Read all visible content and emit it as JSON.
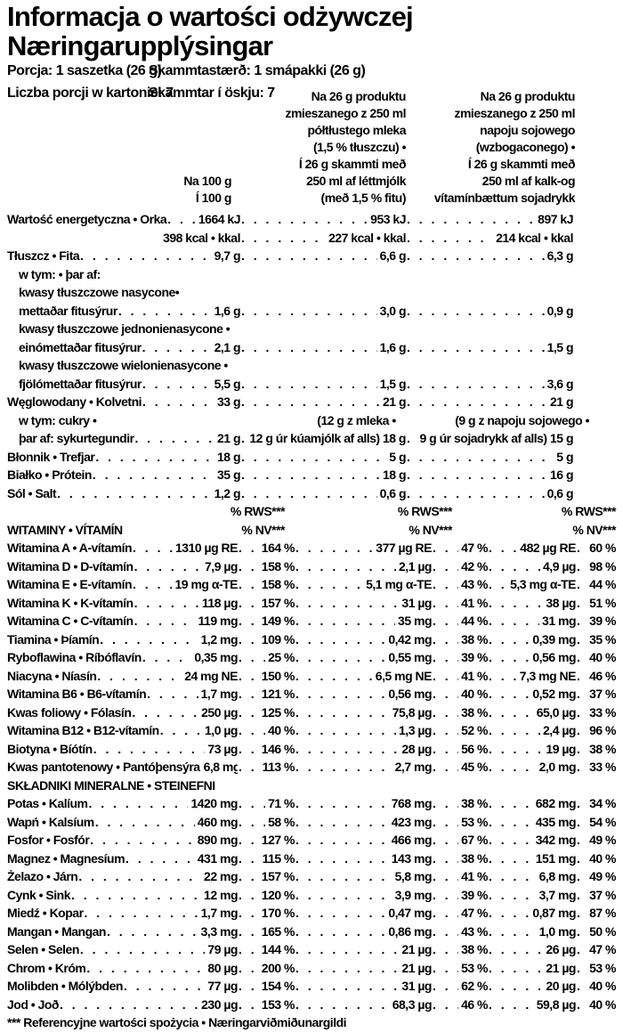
{
  "colors": {
    "text": "#000000",
    "background": "#ffffff"
  },
  "title": [
    "Informacja o wartości odżywczej",
    "Næringarupplýsingar"
  ],
  "meta": {
    "serving_pl": "Porcja: 1 saszetka (26 g)",
    "serving_is": "Skammtastærð: 1 smápakki (26 g)",
    "servings_pl": "Liczba porcji w kartonie: 7",
    "servings_is": "Skammtar í öskju: 7"
  },
  "columns": {
    "per100": [
      "Na 100 g",
      "Í 100 g"
    ],
    "milk": [
      "Na 26 g produktu",
      "zmieszanego z 250 ml",
      "półtłustego mleka",
      "(1,5 % tłuszczu) •",
      "Í 26 g skammti með",
      "250 ml af léttmjólk",
      "(með 1,5 % fitu)"
    ],
    "soy": [
      "Na 26 g produktu",
      "zmieszanego z 250 ml",
      "napoju sojowego",
      "(wzbogaconego) •",
      "Í 26 g skammti með",
      "250 ml af kalk-og",
      "vítamínbættum sojadrykk"
    ]
  },
  "main_rows": [
    {
      "type": "row",
      "label": "Wartość energetyczna • Orka",
      "v1": "1664 kJ",
      "v2": "953 kJ",
      "v3": "897 kJ"
    },
    {
      "type": "row",
      "label": "",
      "v1": "398 kcal • kkal",
      "v2": "227 kcal • kkal",
      "v3": "214 kcal • kkal"
    },
    {
      "type": "row",
      "label": "Tłuszcz • Fita",
      "v1": "9,7 g",
      "v2": "6,6 g",
      "v3": "6,3 g"
    },
    {
      "type": "plain",
      "label": "w tym: • þar af:",
      "indent": 1
    },
    {
      "type": "plain",
      "label": "kwasy tłuszczowe nasycone•",
      "indent": 1
    },
    {
      "type": "row",
      "label": "mettaðar fitusýrur",
      "indent": 1,
      "v1": "1,6 g",
      "v2": "3,0 g",
      "v3": "0,9 g"
    },
    {
      "type": "plain",
      "label": "kwasy tłuszczowe jednonienasycone •",
      "indent": 1
    },
    {
      "type": "row",
      "label": "einómettaðar fitusýrur",
      "indent": 1,
      "v1": "2,1 g",
      "v2": "1,6 g",
      "v3": "1,5 g"
    },
    {
      "type": "plain",
      "label": "kwasy tłuszczowe wielonienasycone •",
      "indent": 1
    },
    {
      "type": "row",
      "label": "fjölómettaðar fitusýrur",
      "indent": 1,
      "v1": "5,5 g",
      "v2": "1,5 g",
      "v3": "3,6 g"
    },
    {
      "type": "row",
      "label": "Węglowodany • Kolvetni",
      "v1": "33 g",
      "v2": "21 g",
      "v3": "21 g"
    },
    {
      "type": "midline",
      "label": "w tym: cukry •",
      "indent": 1,
      "mid2": "(12 g z mleka •",
      "mid3": "(9 g z napoju sojowego •"
    },
    {
      "type": "row",
      "label": "þar af: sykurtegundir",
      "indent": 1,
      "v1": "21 g",
      "v2": "12 g úr kúamjólk af alls) 18 g",
      "v3": "9 g úr sojadrykk af alls) 15 g"
    },
    {
      "type": "row",
      "label": "Błonnik • Trefjar",
      "v1": "18 g",
      "v2": "5 g",
      "v3": "5 g"
    },
    {
      "type": "row",
      "label": "Białko • Prótein",
      "v1": "35 g",
      "v2": "18 g",
      "v3": "16 g"
    },
    {
      "type": "row",
      "label": "Sól • Salt",
      "v1": "1,2 g",
      "v2": "0,6 g",
      "v3": "0,6 g"
    }
  ],
  "rws_header": {
    "rws": "% RWS***",
    "nv": "% NV***"
  },
  "sections": {
    "vitamins": "WITAMINY • VÍTAMÍN",
    "minerals": "SKŁADNIKI MINERALNE • STEINEFNI"
  },
  "vitamins": [
    {
      "label": "Witamina A • A-vítamín",
      "v1": "1310 µg RE",
      "p1": "164 %",
      "v2": "377 µg RE",
      "p2": "47 %",
      "v3": "482 µg RE",
      "p3": "60 %"
    },
    {
      "label": "Witamina D • D-vítamín",
      "v1": "7,9 µg",
      "p1": "158 %",
      "v2": "2,1 µg",
      "p2": "42 %",
      "v3": "4,9 µg",
      "p3": "98 %"
    },
    {
      "label": "Witamina E • E-vítamín",
      "v1": "19 mg α-TE",
      "p1": "158 %",
      "v2": "5,1 mg α-TE",
      "p2": "43 %",
      "v3": "5,3 mg α-TE",
      "p3": "44 %"
    },
    {
      "label": "Witamina K • K-vítamín",
      "v1": "118 µg",
      "p1": "157 %",
      "v2": "31 µg",
      "p2": "41 %",
      "v3": "38 µg",
      "p3": "51 %"
    },
    {
      "label": "Witamina C • C-vítamín",
      "v1": "119 mg",
      "p1": "149 %",
      "v2": "35 mg",
      "p2": "44 %",
      "v3": "31 mg",
      "p3": "39 %"
    },
    {
      "label": "Tiamina • Þíamín",
      "v1": "1,2 mg",
      "p1": "109 %",
      "v2": "0,42 mg",
      "p2": "38 %",
      "v3": "0,39 mg",
      "p3": "35 %"
    },
    {
      "label": "Ryboflawina • Ríbóflavín",
      "v1": "0,35 mg",
      "p1": "25 %",
      "v2": "0,55 mg",
      "p2": "39 %",
      "v3": "0,56 mg",
      "p3": "40 %"
    },
    {
      "label": "Niacyna • Níasín",
      "v1": "24 mg NE",
      "p1": "150 %",
      "v2": "6,5 mg NE",
      "p2": "41 %",
      "v3": "7,3 mg NE",
      "p3": "46 %"
    },
    {
      "label": "Witamina B6 • B6-vítamín",
      "v1": "1,7 mg",
      "p1": "121 %",
      "v2": "0,56 mg",
      "p2": "40 %",
      "v3": "0,52 mg",
      "p3": "37 %"
    },
    {
      "label": "Kwas foliowy • Fólasín",
      "v1": "250 µg",
      "p1": "125 %",
      "v2": "75,8 µg",
      "p2": "38 %",
      "v3": "65,0 µg",
      "p3": "33 %"
    },
    {
      "label": "Witamina B12 • B12-vítamín",
      "v1": "1,0 µg",
      "p1": "40 %",
      "v2": "1,3 µg",
      "p2": "52 %",
      "v3": "2,4 µg",
      "p3": "96 %"
    },
    {
      "label": "Biotyna • Bíótín",
      "v1": "73 µg",
      "p1": "146 %",
      "v2": "28 µg",
      "p2": "56 %",
      "v3": "19 µg",
      "p3": "38 %"
    },
    {
      "label": "Kwas pantotenowy • Pantóþensýra",
      "v1": "6,8 mg",
      "p1": "113 %",
      "v2": "2,7 mg",
      "p2": "45 %",
      "v3": "2,0 mg",
      "p3": "33 %"
    }
  ],
  "minerals": [
    {
      "label": "Potas • Kalíum",
      "v1": "1420 mg",
      "p1": "71 %",
      "v2": "768 mg",
      "p2": "38 %",
      "v3": "682 mg",
      "p3": "34 %"
    },
    {
      "label": "Wapń • Kalsíum",
      "v1": "460 mg",
      "p1": "58 %",
      "v2": "423 mg",
      "p2": "53 %",
      "v3": "435 mg",
      "p3": "54 %"
    },
    {
      "label": "Fosfor • Fosfór",
      "v1": "890 mg",
      "p1": "127 %",
      "v2": "466 mg",
      "p2": "67 %",
      "v3": "342 mg",
      "p3": "49 %"
    },
    {
      "label": "Magnez • Magnesíum",
      "v1": "431 mg",
      "p1": "115 %",
      "v2": "143 mg",
      "p2": "38 %",
      "v3": "151 mg",
      "p3": "40 %"
    },
    {
      "label": "Żelazo • Járn",
      "v1": "22 mg",
      "p1": "157 %",
      "v2": "5,8 mg",
      "p2": "41 %",
      "v3": "6,8 mg",
      "p3": "49 %"
    },
    {
      "label": "Cynk • Sink",
      "v1": "12 mg",
      "p1": "120 %",
      "v2": "3,9 mg",
      "p2": "39 %",
      "v3": "3,7 mg",
      "p3": "37 %"
    },
    {
      "label": "Miedź • Kopar",
      "v1": "1,7 mg",
      "p1": "170 %",
      "v2": "0,47 mg",
      "p2": "47 %",
      "v3": "0,87 mg",
      "p3": "87 %"
    },
    {
      "label": "Mangan • Mangan",
      "v1": "3,3 mg",
      "p1": "165 %",
      "v2": "0,86 mg",
      "p2": "43 %",
      "v3": "1,0 mg",
      "p3": "50 %"
    },
    {
      "label": "Selen • Selen",
      "v1": "79 µg",
      "p1": "144 %",
      "v2": "21 µg",
      "p2": "38 %",
      "v3": "26 µg",
      "p3": "47 %"
    },
    {
      "label": "Chrom • Króm",
      "v1": "80 µg",
      "p1": "200 %",
      "v2": "21 µg",
      "p2": "53 %",
      "v3": "21 µg",
      "p3": "53 %"
    },
    {
      "label": "Molibden • Mólýbden",
      "v1": "77 µg",
      "p1": "154 %",
      "v2": "31 µg",
      "p2": "62 %",
      "v3": "20 µg",
      "p3": "40 %"
    },
    {
      "label": "Jod • Joð",
      "v1": "230 µg",
      "p1": "153 %",
      "v2": "68,3 µg",
      "p2": "46 %",
      "v3": "59,8 µg",
      "p3": "40 %"
    }
  ],
  "footnote": "*** Referencyjne wartości spożycia • Næringarviðmiðunargildi"
}
